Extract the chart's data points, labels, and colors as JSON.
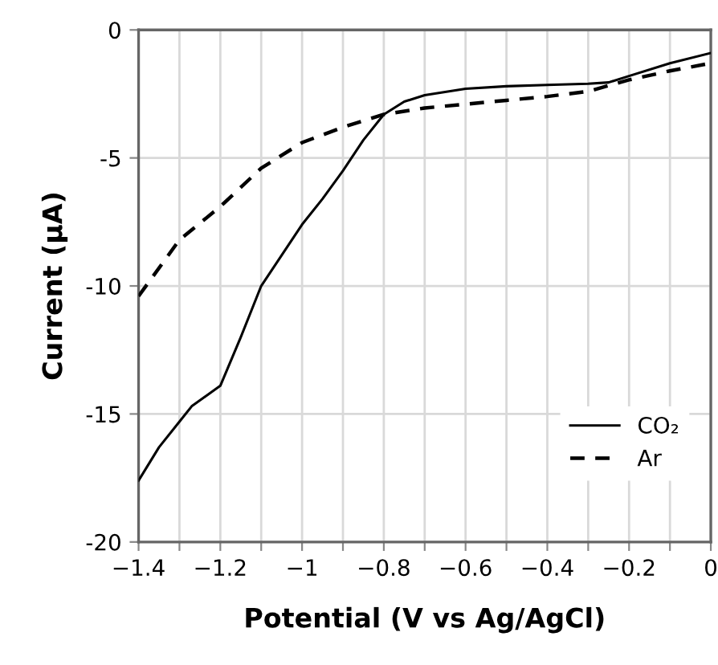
{
  "chart_data": {
    "type": "line",
    "xlabel": "Potential (V vs Ag/AgCl)",
    "ylabel": "Current (µA)",
    "series": [
      {
        "name": "CO₂",
        "color": "#000000",
        "line_style": "solid",
        "x": [
          -1.4,
          -1.35,
          -1.3,
          -1.27,
          -1.2,
          -1.15,
          -1.1,
          -1.05,
          -1.0,
          -0.95,
          -0.9,
          -0.85,
          -0.8,
          -0.75,
          -0.7,
          -0.6,
          -0.5,
          -0.4,
          -0.3,
          -0.25,
          -0.2,
          -0.1,
          0.0
        ],
        "values": [
          -17.6,
          -16.3,
          -15.3,
          -14.7,
          -13.9,
          -12.0,
          -10.0,
          -8.8,
          -7.6,
          -6.6,
          -5.5,
          -4.3,
          -3.3,
          -2.8,
          -2.55,
          -2.3,
          -2.2,
          -2.15,
          -2.1,
          -2.05,
          -1.8,
          -1.3,
          -0.9
        ]
      },
      {
        "name": "Ar",
        "color": "#000000",
        "line_style": "dashed",
        "x": [
          -1.4,
          -1.3,
          -1.2,
          -1.1,
          -1.0,
          -0.9,
          -0.8,
          -0.7,
          -0.6,
          -0.5,
          -0.4,
          -0.3,
          -0.2,
          -0.1,
          0.0
        ],
        "values": [
          -10.4,
          -8.2,
          -6.9,
          -5.4,
          -4.4,
          -3.8,
          -3.3,
          -3.05,
          -2.9,
          -2.75,
          -2.6,
          -2.4,
          -1.95,
          -1.6,
          -1.3
        ]
      }
    ],
    "xlim": [
      -1.4,
      0
    ],
    "ylim": [
      -20,
      0
    ],
    "xticks": [
      {
        "value": -1.4,
        "label": "−1.4"
      },
      {
        "value": -1.3,
        "label": null
      },
      {
        "value": -1.2,
        "label": "−1.2"
      },
      {
        "value": -1.1,
        "label": null
      },
      {
        "value": -1.0,
        "label": "−1"
      },
      {
        "value": -0.9,
        "label": null
      },
      {
        "value": -0.8,
        "label": "−0.8"
      },
      {
        "value": -0.7,
        "label": null
      },
      {
        "value": -0.6,
        "label": "−0.6"
      },
      {
        "value": -0.5,
        "label": null
      },
      {
        "value": -0.4,
        "label": "−0.4"
      },
      {
        "value": -0.3,
        "label": null
      },
      {
        "value": -0.2,
        "label": "−0.2"
      },
      {
        "value": -0.1,
        "label": null
      },
      {
        "value": 0,
        "label": "0"
      }
    ],
    "yticks": [
      {
        "value": -20,
        "label": "-20"
      },
      {
        "value": -15,
        "label": "-15"
      },
      {
        "value": -10,
        "label": "-10"
      },
      {
        "value": -5,
        "label": "-5"
      },
      0
    ],
    "grid": true,
    "legend": "bottom right",
    "marker": "none"
  }
}
